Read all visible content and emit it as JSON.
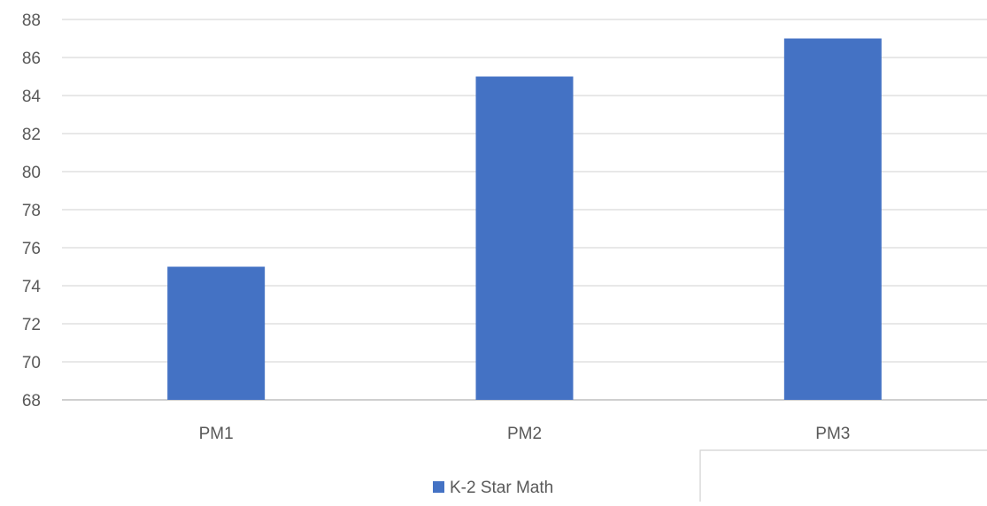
{
  "chart_data": {
    "type": "bar",
    "title": "",
    "xlabel": "",
    "ylabel": "",
    "categories": [
      "PM1",
      "PM2",
      "PM3"
    ],
    "series": [
      {
        "name": "K-2 Star Math",
        "values": [
          75,
          85,
          87
        ],
        "color": "#4472C4"
      }
    ],
    "ylim": [
      68,
      88
    ],
    "ytick_step": 2,
    "yticks": [
      "68",
      "70",
      "72",
      "74",
      "76",
      "78",
      "80",
      "82",
      "84",
      "86",
      "88"
    ],
    "grid": true,
    "legend_position": "bottom"
  }
}
